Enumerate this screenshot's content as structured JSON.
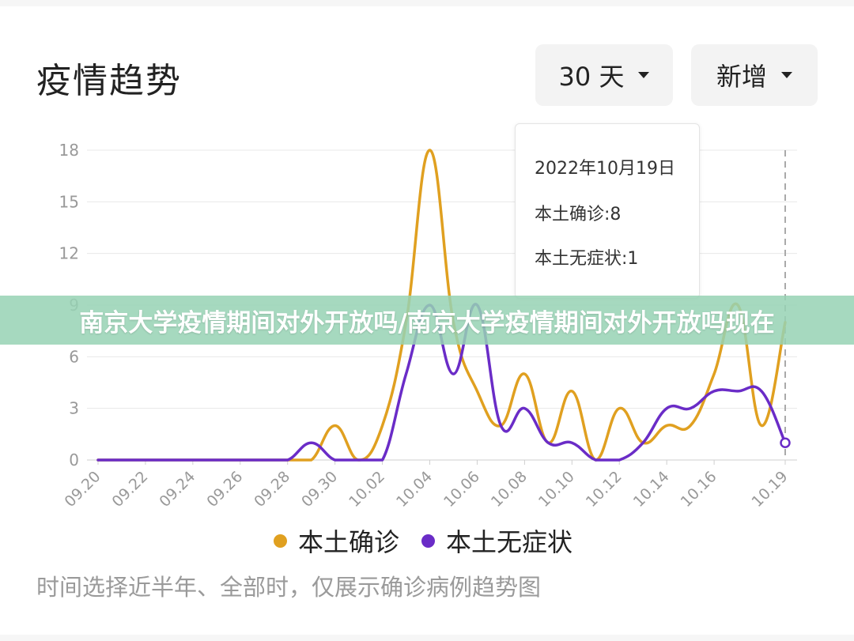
{
  "header": {
    "title": "疫情趋势",
    "range_dropdown": "30 天",
    "type_dropdown": "新增"
  },
  "tooltip": {
    "date": "2022年10月19日",
    "line1": "本土确诊:8",
    "line2": "本土无症状:1"
  },
  "banner": {
    "text": "南京大学疫情期间对外开放吗/南京大学疫情期间对外开放吗现在"
  },
  "legend": {
    "series1": "本土确诊",
    "series2": "本土无症状"
  },
  "note": "时间选择近半年、全部时，仅展示确诊病例趋势图",
  "colors": {
    "series1": "#e0a020",
    "series2": "#6a2cc7",
    "grid": "#e8e8e8",
    "axis_text": "#999999"
  },
  "chart_data": {
    "type": "line",
    "x": [
      "09.20",
      "09.21",
      "09.22",
      "09.23",
      "09.24",
      "09.25",
      "09.26",
      "09.27",
      "09.28",
      "09.29",
      "09.30",
      "10.01",
      "10.02",
      "10.03",
      "10.04",
      "10.05",
      "10.06",
      "10.07",
      "10.08",
      "10.09",
      "10.10",
      "10.11",
      "10.12",
      "10.13",
      "10.14",
      "10.15",
      "10.16",
      "10.17",
      "10.18",
      "10.19"
    ],
    "x_tick_labels": [
      "09.20",
      "09.22",
      "09.24",
      "09.26",
      "09.28",
      "09.30",
      "10.02",
      "10.04",
      "10.06",
      "10.08",
      "10.10",
      "10.12",
      "10.14",
      "10.16",
      "10.19"
    ],
    "y_ticks": [
      0,
      3,
      6,
      9,
      12,
      15,
      18
    ],
    "ylim": [
      0,
      18
    ],
    "grid": true,
    "legend_position": "bottom",
    "series": [
      {
        "name": "本土确诊",
        "values": [
          0,
          0,
          0,
          0,
          0,
          0,
          0,
          0,
          0,
          0,
          2,
          0,
          2,
          8,
          18,
          8,
          4,
          2,
          5,
          1,
          4,
          0,
          3,
          1,
          2,
          2,
          5,
          9,
          2,
          8
        ]
      },
      {
        "name": "本土无症状",
        "values": [
          0,
          0,
          0,
          0,
          0,
          0,
          0,
          0,
          0,
          1,
          0,
          0,
          0,
          5,
          9,
          5,
          9,
          2,
          3,
          1,
          1,
          0,
          0,
          1,
          3,
          3,
          4,
          4,
          4,
          1
        ]
      }
    ],
    "highlight_index": 29
  }
}
